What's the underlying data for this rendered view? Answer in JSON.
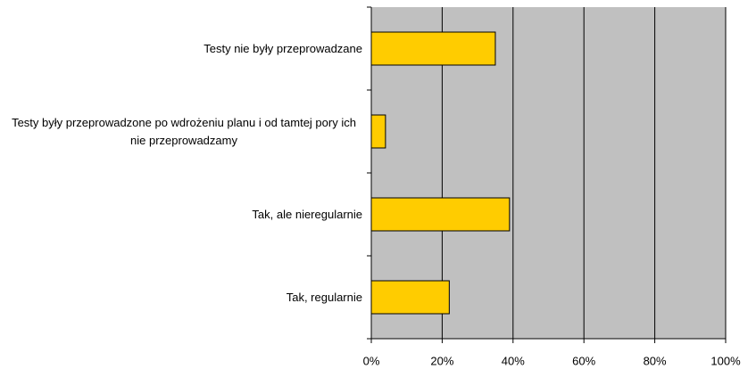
{
  "chart_data": {
    "type": "barh",
    "categories": [
      "Testy nie były przeprowadzane",
      "Testy były przeprowadzone po wdrożeniu planu i od tamtej pory ich nie przeprowadzamy",
      "Tak, ale nieregularnie",
      "Tak, regularnie"
    ],
    "values": [
      35,
      4,
      39,
      22
    ],
    "color": "#ffcc00",
    "background": "#c0c0c0",
    "xlim": [
      0,
      100
    ],
    "xticks": [
      {
        "value": 0,
        "label": "0%"
      },
      {
        "value": 20,
        "label": "20%"
      },
      {
        "value": 40,
        "label": "40%"
      },
      {
        "value": 60,
        "label": "60%"
      },
      {
        "value": 80,
        "label": "80%"
      },
      {
        "value": 100,
        "label": "100%"
      }
    ],
    "grid": true
  }
}
